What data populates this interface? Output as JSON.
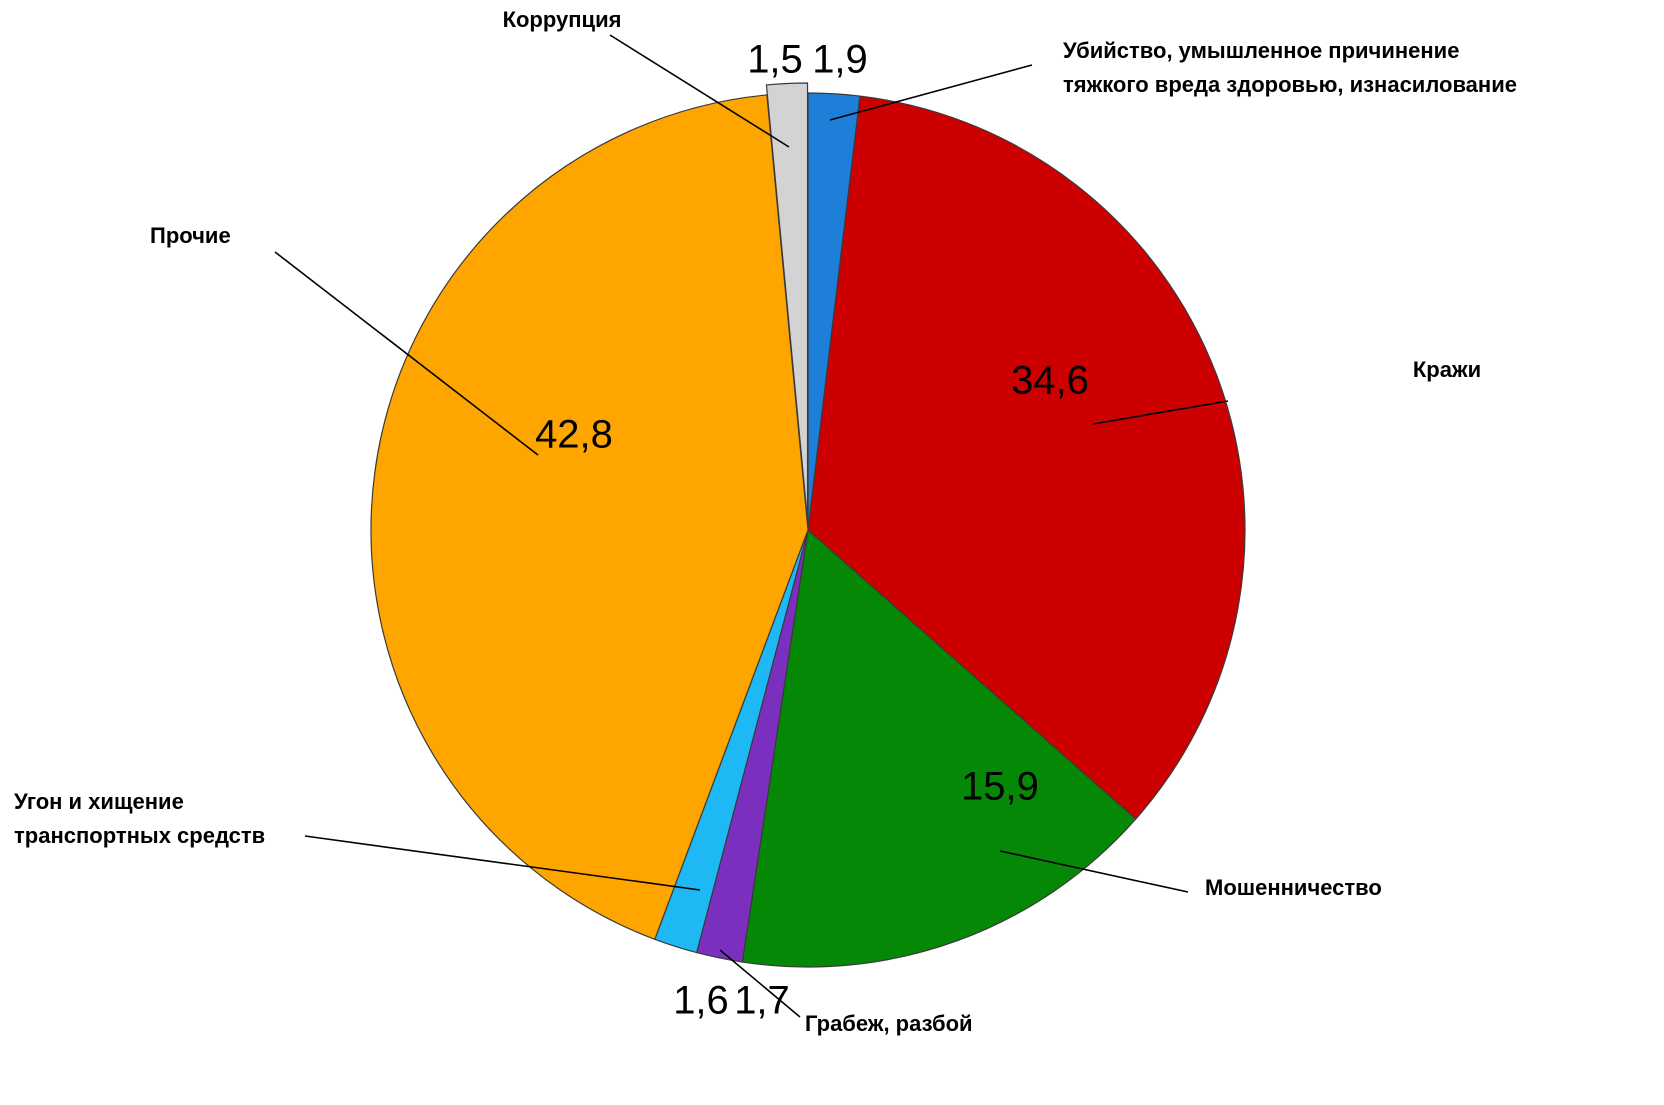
{
  "chart_data": {
    "type": "pie",
    "title": "",
    "start_angle_deg": 0,
    "direction": "clockwise",
    "slices": [
      {
        "label": "Убийство, умышленное причинение тяжкого вреда здоровью, изнасилование",
        "label_lines": [
          "Убийство, умышленное причинение",
          "тяжкого вреда здоровью, изнасилование"
        ],
        "value": 1.9,
        "value_label": "1,9",
        "color": "#1E7FD8"
      },
      {
        "label": "Кражи",
        "label_lines": [
          "Кражи"
        ],
        "value": 34.6,
        "value_label": "34,6",
        "color": "#CC0000"
      },
      {
        "label": "Мошенничество",
        "label_lines": [
          "Мошенничество"
        ],
        "value": 15.9,
        "value_label": "15,9",
        "color": "#058805"
      },
      {
        "label": "Грабеж, разбой",
        "label_lines": [
          "Грабеж, разбой"
        ],
        "value": 1.7,
        "value_label": "1,7",
        "color": "#7B2FBE"
      },
      {
        "label": "Угон и хищение транспортных средств",
        "label_lines": [
          "Угон и хищение",
          "транспортных средств"
        ],
        "value": 1.6,
        "value_label": "1,6",
        "color": "#1EB9F5"
      },
      {
        "label": "Прочие",
        "label_lines": [
          "Прочие"
        ],
        "value": 42.8,
        "value_label": "42,8",
        "color": "#FFA500"
      },
      {
        "label": "Коррупция",
        "label_lines": [
          "Коррупция"
        ],
        "value": 1.5,
        "value_label": "1,5",
        "color": "#D3D3D3",
        "exploded": true
      }
    ]
  }
}
